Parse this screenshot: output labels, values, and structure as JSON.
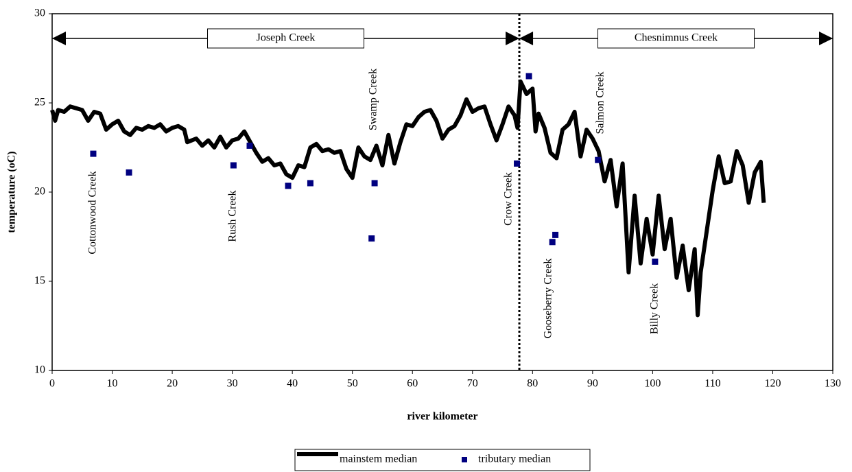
{
  "chart_data": {
    "type": "line",
    "xlabel": "river kilometer",
    "ylabel": "temperature (oC)",
    "xlim": [
      0,
      130
    ],
    "xticks": [
      0,
      10,
      20,
      30,
      40,
      50,
      60,
      70,
      80,
      90,
      100,
      110,
      120,
      130
    ],
    "ylim": [
      10,
      30
    ],
    "yticks": [
      10,
      15,
      20,
      25,
      30
    ],
    "divider_x": 77.8,
    "regions": [
      {
        "label": "Joseph Creek",
        "range": [
          0,
          77.8
        ]
      },
      {
        "label": "Chesnimnus Creek",
        "range": [
          77.8,
          130
        ]
      }
    ],
    "annotations": [
      "Cottonwood Creek",
      "Rush Creek",
      "Swamp Creek",
      "Crow Creek",
      "Gooseberry Creek",
      "Salmon Creek",
      "Billy Creek"
    ],
    "series": [
      {
        "name": "mainstem median",
        "type": "line",
        "color": "#000000",
        "x": [
          0,
          0.5,
          1,
          2,
          3,
          4,
          5,
          6,
          7,
          8,
          9,
          10,
          11,
          12,
          13,
          14,
          15,
          16,
          17,
          18,
          19,
          20,
          21,
          22,
          22.5,
          24,
          25,
          26,
          27,
          28,
          29,
          30,
          31,
          32,
          33,
          34,
          35,
          36,
          37,
          38,
          39,
          40,
          41,
          42,
          43,
          44,
          45,
          46,
          47,
          48,
          49,
          50,
          51,
          52,
          53,
          54,
          55,
          56,
          57,
          58,
          59,
          60,
          61,
          62,
          63,
          64,
          65,
          66,
          67,
          68,
          69,
          70,
          71,
          72,
          73,
          74,
          75,
          76,
          77,
          77.5,
          78,
          79,
          80,
          80.5,
          81,
          82,
          83,
          84,
          85,
          86,
          87,
          88,
          89,
          90,
          91,
          92,
          93,
          94,
          95,
          96,
          97,
          98,
          99,
          100,
          101,
          102,
          103,
          104,
          105,
          106,
          107,
          107.5,
          108,
          110,
          111,
          112,
          113,
          114,
          115,
          116,
          117,
          118,
          118.5
        ],
        "values": [
          24.6,
          24,
          24.6,
          24.5,
          24.8,
          24.7,
          24.6,
          24,
          24.5,
          24.4,
          23.5,
          23.8,
          24,
          23.4,
          23.2,
          23.6,
          23.5,
          23.7,
          23.6,
          23.8,
          23.4,
          23.6,
          23.7,
          23.5,
          22.8,
          23,
          22.6,
          22.9,
          22.5,
          23.1,
          22.5,
          22.9,
          23,
          23.4,
          22.8,
          22.2,
          21.7,
          21.9,
          21.5,
          21.6,
          21,
          20.8,
          21.5,
          21.4,
          22.5,
          22.7,
          22.3,
          22.4,
          22.2,
          22.3,
          21.3,
          20.8,
          22.5,
          22,
          21.8,
          22.6,
          21.5,
          23.2,
          21.6,
          22.8,
          23.8,
          23.7,
          24.2,
          24.5,
          24.6,
          24,
          23,
          23.5,
          23.7,
          24.3,
          25.2,
          24.5,
          24.7,
          24.8,
          23.8,
          22.9,
          23.8,
          24.8,
          24.3,
          23.6,
          26.2,
          25.5,
          25.8,
          23.4,
          24.4,
          23.6,
          22.2,
          21.9,
          23.5,
          23.8,
          24.5,
          22,
          23.5,
          23,
          22.3,
          20.6,
          21.8,
          19.2,
          21.6,
          15.5,
          19.8,
          16,
          18.5,
          16.5,
          19.8,
          16.8,
          18.5,
          15.2,
          17,
          14.5,
          16.8,
          13.1,
          15.5,
          20.1,
          22,
          20.5,
          20.6,
          22.3,
          21.5,
          19.4,
          21.1,
          21.7,
          19.4
        ]
      },
      {
        "name": "tributary median",
        "type": "scatter",
        "color": "#000080",
        "x": [
          6.85,
          12.8,
          30.2,
          32.9,
          39.3,
          43.0,
          53.2,
          53.7,
          77.4,
          79.4,
          83.3,
          83.8,
          90.9,
          100.4
        ],
        "values": [
          22.15,
          21.1,
          21.5,
          22.6,
          20.35,
          20.5,
          17.4,
          20.5,
          21.6,
          26.5,
          17.2,
          17.6,
          21.8,
          16.1
        ]
      }
    ]
  }
}
